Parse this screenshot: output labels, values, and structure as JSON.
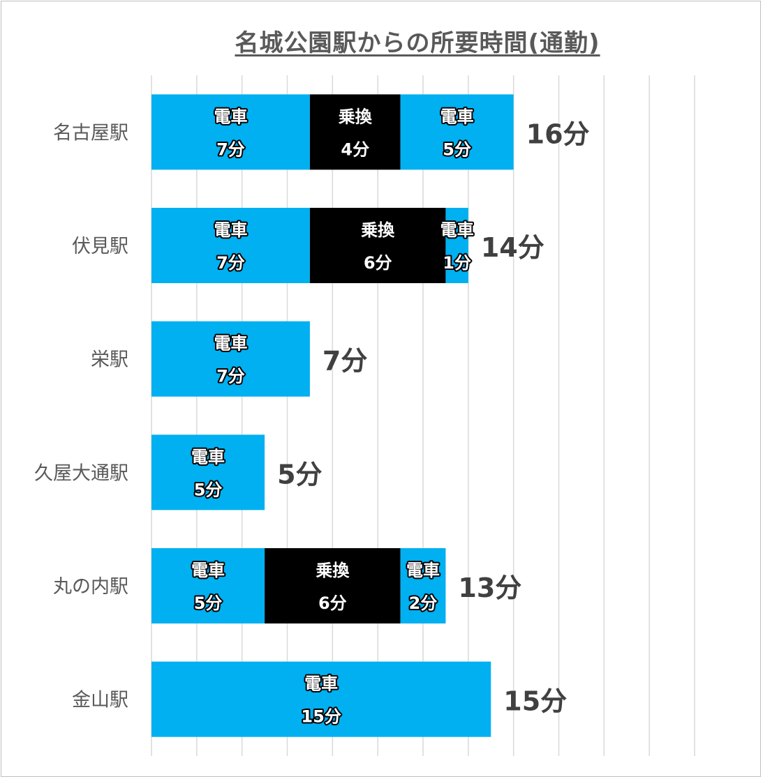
{
  "chart_data": {
    "type": "bar",
    "orientation": "horizontal",
    "stacked": true,
    "title": "名城公園駅からの所要時間(通勤)",
    "xlim": [
      0,
      24
    ],
    "grid": true,
    "legend": "none",
    "colors": {
      "電車": "#00b0f0",
      "乗換": "#000000",
      "grid": "#d9d9d9",
      "axis_text": "#595959",
      "total_text": "#404040"
    },
    "categories": [
      "名古屋駅",
      "伏見駅",
      "栄駅",
      "久屋大通駅",
      "丸の内駅",
      "金山駅"
    ],
    "bars": [
      {
        "category": "名古屋駅",
        "total": 16,
        "total_label": "16分",
        "segments": [
          {
            "kind": "電車",
            "value": 7,
            "label": "電車",
            "sublabel": "7分"
          },
          {
            "kind": "乗換",
            "value": 4,
            "label": "乗換",
            "sublabel": "4分"
          },
          {
            "kind": "電車",
            "value": 5,
            "label": "電車",
            "sublabel": "5分"
          }
        ]
      },
      {
        "category": "伏見駅",
        "total": 14,
        "total_label": "14分",
        "segments": [
          {
            "kind": "電車",
            "value": 7,
            "label": "電車",
            "sublabel": "7分"
          },
          {
            "kind": "乗換",
            "value": 6,
            "label": "乗換",
            "sublabel": "6分"
          },
          {
            "kind": "電車",
            "value": 1,
            "label": "電車",
            "sublabel": "1分"
          }
        ]
      },
      {
        "category": "栄駅",
        "total": 7,
        "total_label": "7分",
        "segments": [
          {
            "kind": "電車",
            "value": 7,
            "label": "電車",
            "sublabel": "7分"
          }
        ]
      },
      {
        "category": "久屋大通駅",
        "total": 5,
        "total_label": "5分",
        "segments": [
          {
            "kind": "電車",
            "value": 5,
            "label": "電車",
            "sublabel": "5分"
          }
        ]
      },
      {
        "category": "丸の内駅",
        "total": 13,
        "total_label": "13分",
        "segments": [
          {
            "kind": "電車",
            "value": 5,
            "label": "電車",
            "sublabel": "5分"
          },
          {
            "kind": "乗換",
            "value": 6,
            "label": "乗換",
            "sublabel": "6分"
          },
          {
            "kind": "電車",
            "value": 2,
            "label": "電車",
            "sublabel": "2分"
          }
        ]
      },
      {
        "category": "金山駅",
        "total": 15,
        "total_label": "15分",
        "segments": [
          {
            "kind": "電車",
            "value": 15,
            "label": "電車",
            "sublabel": "15分"
          }
        ]
      }
    ]
  }
}
